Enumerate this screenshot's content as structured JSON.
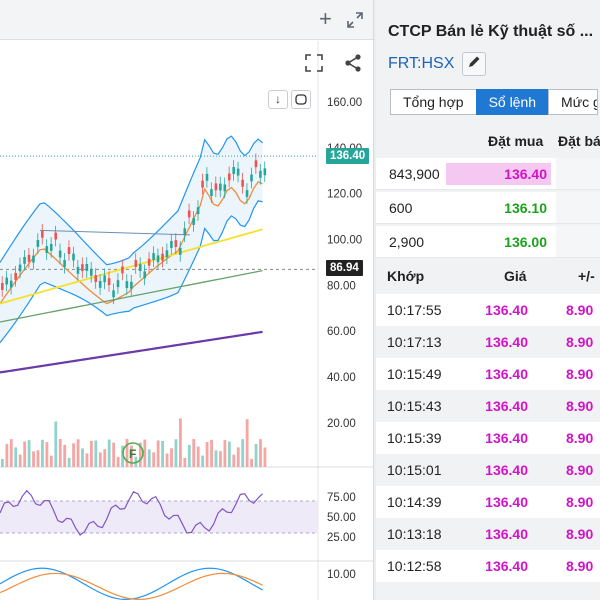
{
  "chart": {
    "price_axis": [
      "160.00",
      "140.00",
      "120.00",
      "100.00",
      "80.00",
      "60.00",
      "40.00",
      "20.00"
    ],
    "last_price_label": "136.40",
    "ref_price_label": "86.94",
    "rsi_axis": [
      "75.00",
      "50.00",
      "25.00"
    ],
    "macd_axis": [
      "10.00"
    ],
    "event_marker": "F",
    "colors": {
      "up": "#26a69a",
      "down": "#ef5350",
      "last_price_tag": "#26a69a",
      "ref_price_tag": "#222222",
      "bollinger": "#2196f3",
      "ma_orange": "#f28c3a",
      "ma_yellow": "#f5e12b",
      "ma_green": "#66a36a",
      "ma_purple": "#6a3aa8",
      "rsi": "#7e57c2"
    }
  },
  "company": {
    "name": "CTCP Bán lẻ Kỹ thuật số ...",
    "ticker": "FRT:HSX"
  },
  "tabs": [
    {
      "label": "Tổng hợp",
      "active": false
    },
    {
      "label": "Sổ lệnh",
      "active": true
    },
    {
      "label": "Mức g",
      "active": false
    }
  ],
  "order_book": {
    "headers": {
      "buy": "Đặt mua",
      "sell": "Đặt bá"
    },
    "rows": [
      {
        "volume": "843,900",
        "price": "136.40",
        "color": "#d313c8",
        "highlight": "#f5c8f1"
      },
      {
        "volume": "600",
        "price": "136.10",
        "color": "#1aa31a",
        "highlight": ""
      },
      {
        "volume": "2,900",
        "price": "136.00",
        "color": "#1aa31a",
        "highlight": ""
      }
    ]
  },
  "trades": {
    "headers": {
      "time": "Khớp",
      "price": "Giá",
      "change": "+/-"
    },
    "rows": [
      {
        "time": "10:17:55",
        "price": "136.40",
        "change": "8.90"
      },
      {
        "time": "10:17:13",
        "price": "136.40",
        "change": "8.90"
      },
      {
        "time": "10:15:49",
        "price": "136.40",
        "change": "8.90"
      },
      {
        "time": "10:15:43",
        "price": "136.40",
        "change": "8.90"
      },
      {
        "time": "10:15:39",
        "price": "136.40",
        "change": "8.90"
      },
      {
        "time": "10:15:01",
        "price": "136.40",
        "change": "8.90"
      },
      {
        "time": "10:14:39",
        "price": "136.40",
        "change": "8.90"
      },
      {
        "time": "10:13:18",
        "price": "136.40",
        "change": "8.90"
      },
      {
        "time": "10:12:58",
        "price": "136.40",
        "change": "8.90"
      }
    ]
  },
  "icons": {
    "add": "plus-icon",
    "expand": "expand-arrows-icon",
    "fullscreen": "fullscreen-icon",
    "share": "share-icon",
    "download": "download-arrow-icon",
    "reset": "reset-icon",
    "edit": "pencil-icon"
  }
}
